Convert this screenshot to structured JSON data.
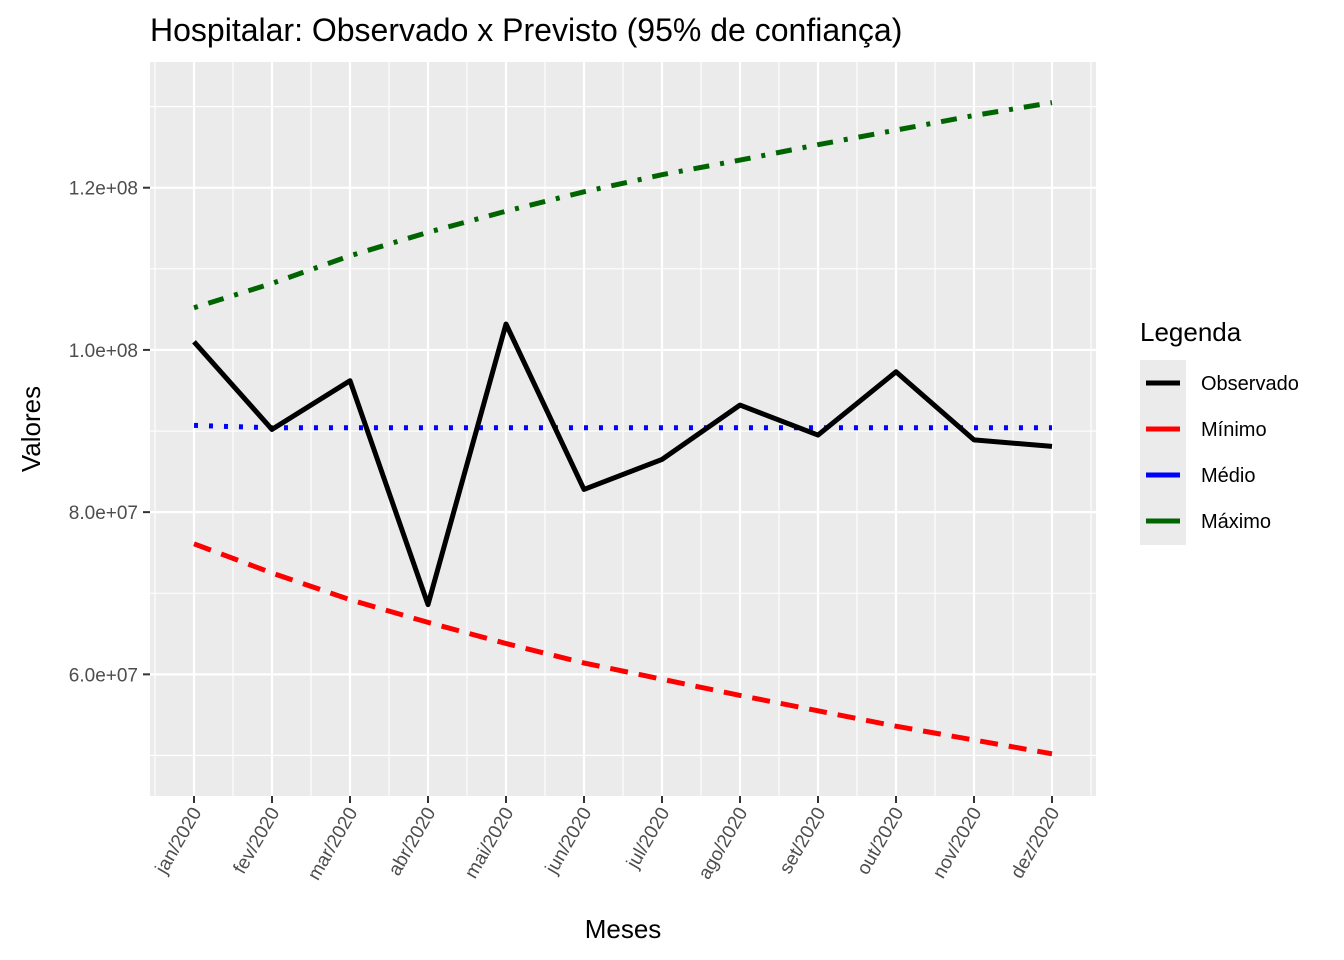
{
  "chart_data": {
    "type": "line",
    "title": "Hospitalar: Observado x Previsto (95% de confiança)",
    "xlabel": "Meses",
    "ylabel": "Valores",
    "categories": [
      "jan/2020",
      "fev/2020",
      "mar/2020",
      "abr/2020",
      "mai/2020",
      "jun/2020",
      "jul/2020",
      "ago/2020",
      "set/2020",
      "out/2020",
      "nov/2020",
      "dez/2020"
    ],
    "y_ticks": [
      {
        "value": 60000000,
        "label": "6.0e+07"
      },
      {
        "value": 80000000,
        "label": "8.0e+07"
      },
      {
        "value": 100000000,
        "label": "1.0e+08"
      },
      {
        "value": 120000000,
        "label": "1.2e+08"
      }
    ],
    "ylim": [
      45000000,
      135500000
    ],
    "grid": true,
    "legend": {
      "title": "Legenda",
      "position": "right"
    },
    "series": [
      {
        "name": "Observado",
        "color": "#000000",
        "dash": "solid",
        "values": [
          101000000,
          90200000,
          96200000,
          68600000,
          103200000,
          82800000,
          86500000,
          93200000,
          89500000,
          97300000,
          88900000,
          88100000
        ]
      },
      {
        "name": "Mínimo",
        "color": "#ff0000",
        "dash": "dashed",
        "values": [
          76100000,
          72500000,
          69200000,
          66400000,
          63800000,
          61400000,
          59400000,
          57400000,
          55500000,
          53600000,
          51900000,
          50200000
        ]
      },
      {
        "name": "Médio",
        "color": "#0000ff",
        "dash": "dotted",
        "values": [
          90700000,
          90400000,
          90400000,
          90400000,
          90400000,
          90400000,
          90400000,
          90400000,
          90400000,
          90400000,
          90400000,
          90400000
        ]
      },
      {
        "name": "Máximo",
        "color": "#006400",
        "dash": "dashdot",
        "values": [
          105200000,
          108200000,
          111600000,
          114500000,
          117100000,
          119500000,
          121600000,
          123400000,
          125300000,
          127100000,
          128900000,
          130500000
        ]
      }
    ]
  }
}
